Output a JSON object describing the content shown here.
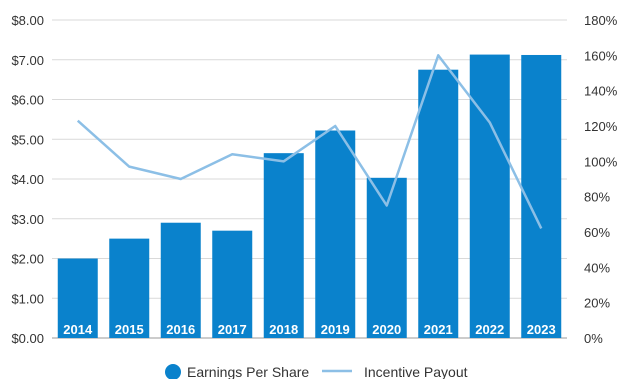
{
  "chart_data": {
    "type": "bar",
    "categories": [
      "2014",
      "2015",
      "2016",
      "2017",
      "2018",
      "2019",
      "2020",
      "2021",
      "2022",
      "2023"
    ],
    "series": [
      {
        "name": "Earnings Per Share",
        "type": "bar",
        "axis": "left",
        "values": [
          2.0,
          2.5,
          2.9,
          2.7,
          4.65,
          5.22,
          4.03,
          6.75,
          7.13,
          7.12
        ],
        "color": "#0a82cc"
      },
      {
        "name": "Incentive Payout",
        "type": "line",
        "axis": "right",
        "values": [
          123,
          97,
          90,
          104,
          100,
          120,
          75,
          160,
          122,
          62
        ],
        "color": "#8cbfe6"
      }
    ],
    "y_left": {
      "ylim": [
        0,
        8
      ],
      "ticks": [
        0,
        1,
        2,
        3,
        4,
        5,
        6,
        7,
        8
      ],
      "tick_labels": [
        "$0.00",
        "$1.00",
        "$2.00",
        "$3.00",
        "$4.00",
        "$5.00",
        "$6.00",
        "$7.00",
        "$8.00"
      ]
    },
    "y_right": {
      "ylim": [
        0,
        180
      ],
      "ticks": [
        0,
        20,
        40,
        60,
        80,
        100,
        120,
        140,
        160,
        180
      ],
      "tick_labels": [
        "0%",
        "20%",
        "40%",
        "60%",
        "80%",
        "100%",
        "120%",
        "140%",
        "160%",
        "180%"
      ]
    },
    "grid": true,
    "legend": {
      "placement": "bottom",
      "entries": [
        "Earnings Per Share",
        "Incentive Payout"
      ]
    },
    "category_labels_position": "inside-bar-bottom"
  }
}
